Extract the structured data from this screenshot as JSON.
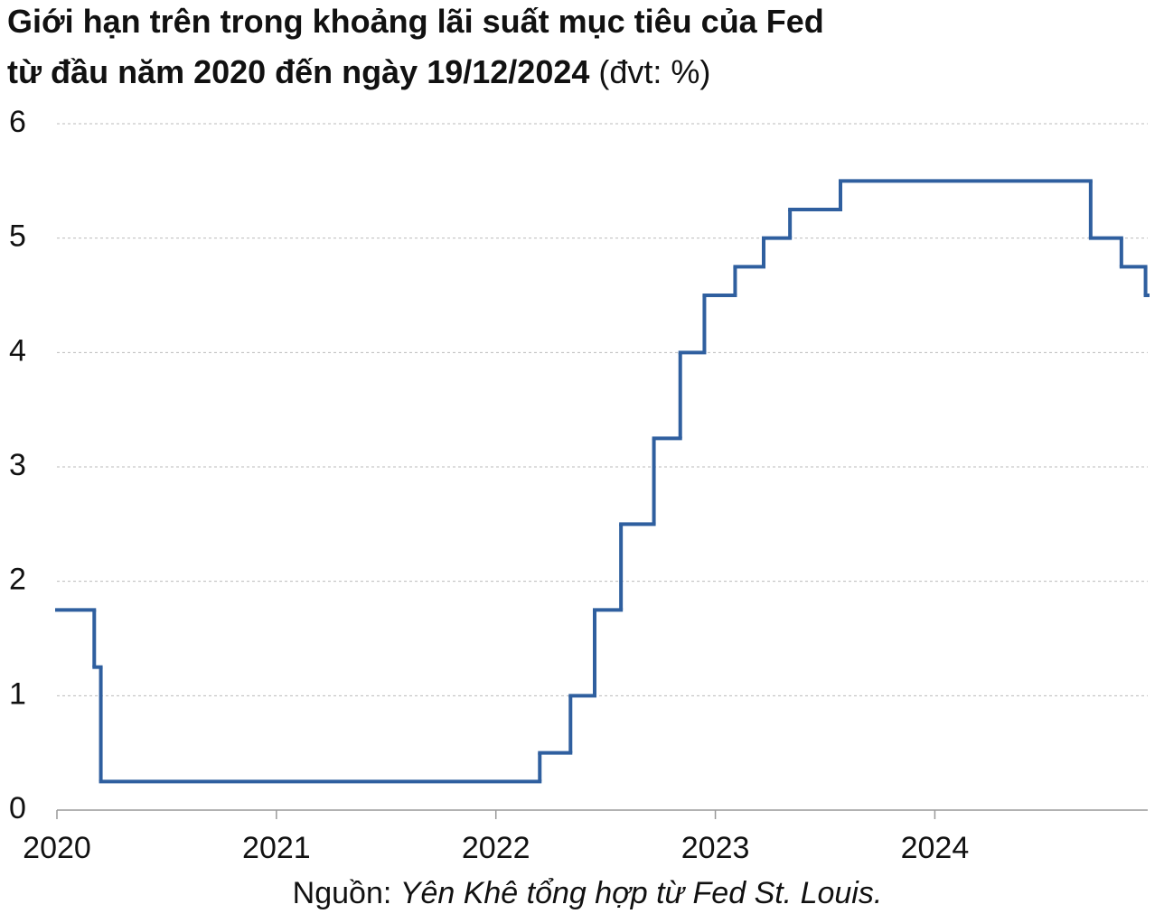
{
  "chart_data": {
    "type": "step",
    "title": "Giới hạn trên trong khoảng lãi suất mục tiêu của Fed",
    "subtitle": "từ đầu năm 2020 đến ngày 19/12/2024",
    "unit": "(đvt: %)",
    "source_label": "Nguồn:",
    "source": "Yên Khê tổng hợp từ Fed St. Louis.",
    "x": [
      2020.0,
      2020.17,
      2020.2,
      2022.2,
      2022.34,
      2022.45,
      2022.57,
      2022.72,
      2022.84,
      2022.95,
      2023.09,
      2023.22,
      2023.34,
      2023.57,
      2024.71,
      2024.85,
      2024.96
    ],
    "series": [
      {
        "color": "#2f5f9f",
        "values": [
          1.75,
          1.25,
          0.25,
          0.5,
          1.0,
          1.75,
          2.5,
          3.25,
          4.0,
          4.5,
          4.75,
          5.0,
          5.25,
          5.5,
          5.0,
          4.75,
          4.5
        ]
      }
    ],
    "xlim": [
      2020,
      2024.97
    ],
    "xticks": [
      2020,
      2021,
      2022,
      2023,
      2024
    ],
    "ylim": [
      0,
      6
    ],
    "yticks": [
      0,
      1,
      2,
      3,
      4,
      5,
      6
    ],
    "grid": true
  }
}
